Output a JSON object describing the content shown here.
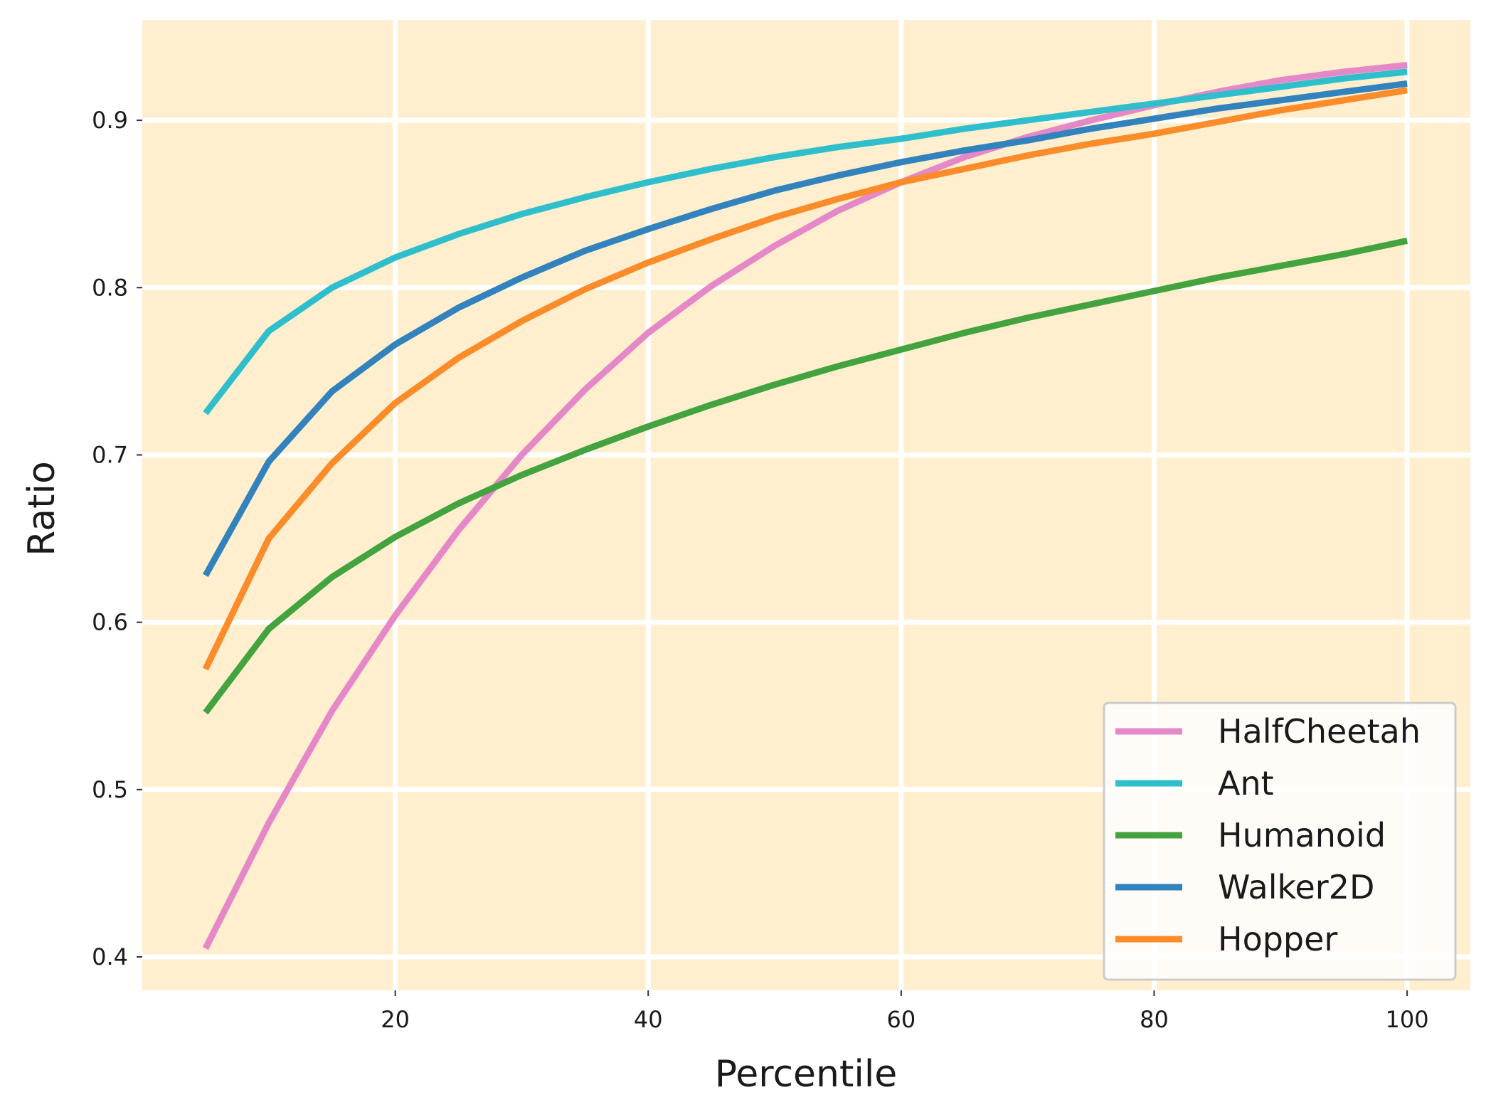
{
  "chart_data": {
    "type": "line",
    "title": "",
    "xlabel": "Percentile",
    "ylabel": "Ratio",
    "xlim": [
      0,
      105
    ],
    "ylim": [
      0.38,
      0.96
    ],
    "xticks": [
      20,
      40,
      60,
      80,
      100
    ],
    "xtick_labels": [
      "20",
      "40",
      "60",
      "80",
      "100"
    ],
    "yticks": [
      0.4,
      0.5,
      0.6,
      0.7,
      0.8,
      0.9
    ],
    "ytick_labels": [
      "0.4",
      "0.5",
      "0.6",
      "0.7",
      "0.8",
      "0.9"
    ],
    "grid": true,
    "legend_position": "bottom-right",
    "background": "#ffefcf",
    "x": [
      5,
      10,
      15,
      20,
      25,
      30,
      35,
      40,
      45,
      50,
      55,
      60,
      65,
      70,
      75,
      80,
      85,
      90,
      95,
      100
    ],
    "series": [
      {
        "name": "HalfCheetah",
        "color": "#e588c8",
        "values": [
          0.405,
          0.48,
          0.547,
          0.604,
          0.655,
          0.7,
          0.739,
          0.773,
          0.801,
          0.825,
          0.846,
          0.863,
          0.878,
          0.89,
          0.9,
          0.909,
          0.917,
          0.924,
          0.929,
          0.933
        ]
      },
      {
        "name": "Ant",
        "color": "#2fbfcc",
        "values": [
          0.725,
          0.774,
          0.8,
          0.818,
          0.832,
          0.844,
          0.854,
          0.863,
          0.871,
          0.878,
          0.884,
          0.889,
          0.895,
          0.9,
          0.905,
          0.91,
          0.915,
          0.92,
          0.925,
          0.929
        ]
      },
      {
        "name": "Humanoid",
        "color": "#43a33e",
        "values": [
          0.546,
          0.596,
          0.627,
          0.651,
          0.671,
          0.688,
          0.703,
          0.717,
          0.73,
          0.742,
          0.753,
          0.763,
          0.773,
          0.782,
          0.79,
          0.798,
          0.806,
          0.813,
          0.82,
          0.828
        ]
      },
      {
        "name": "Walker2D",
        "color": "#3282bd",
        "values": [
          0.628,
          0.696,
          0.738,
          0.766,
          0.788,
          0.806,
          0.822,
          0.835,
          0.847,
          0.858,
          0.867,
          0.875,
          0.882,
          0.888,
          0.895,
          0.901,
          0.907,
          0.912,
          0.917,
          0.922
        ]
      },
      {
        "name": "Hopper",
        "color": "#fc8b2a",
        "values": [
          0.572,
          0.65,
          0.695,
          0.731,
          0.758,
          0.78,
          0.799,
          0.815,
          0.829,
          0.842,
          0.853,
          0.863,
          0.871,
          0.879,
          0.886,
          0.892,
          0.899,
          0.906,
          0.912,
          0.918
        ]
      }
    ]
  }
}
